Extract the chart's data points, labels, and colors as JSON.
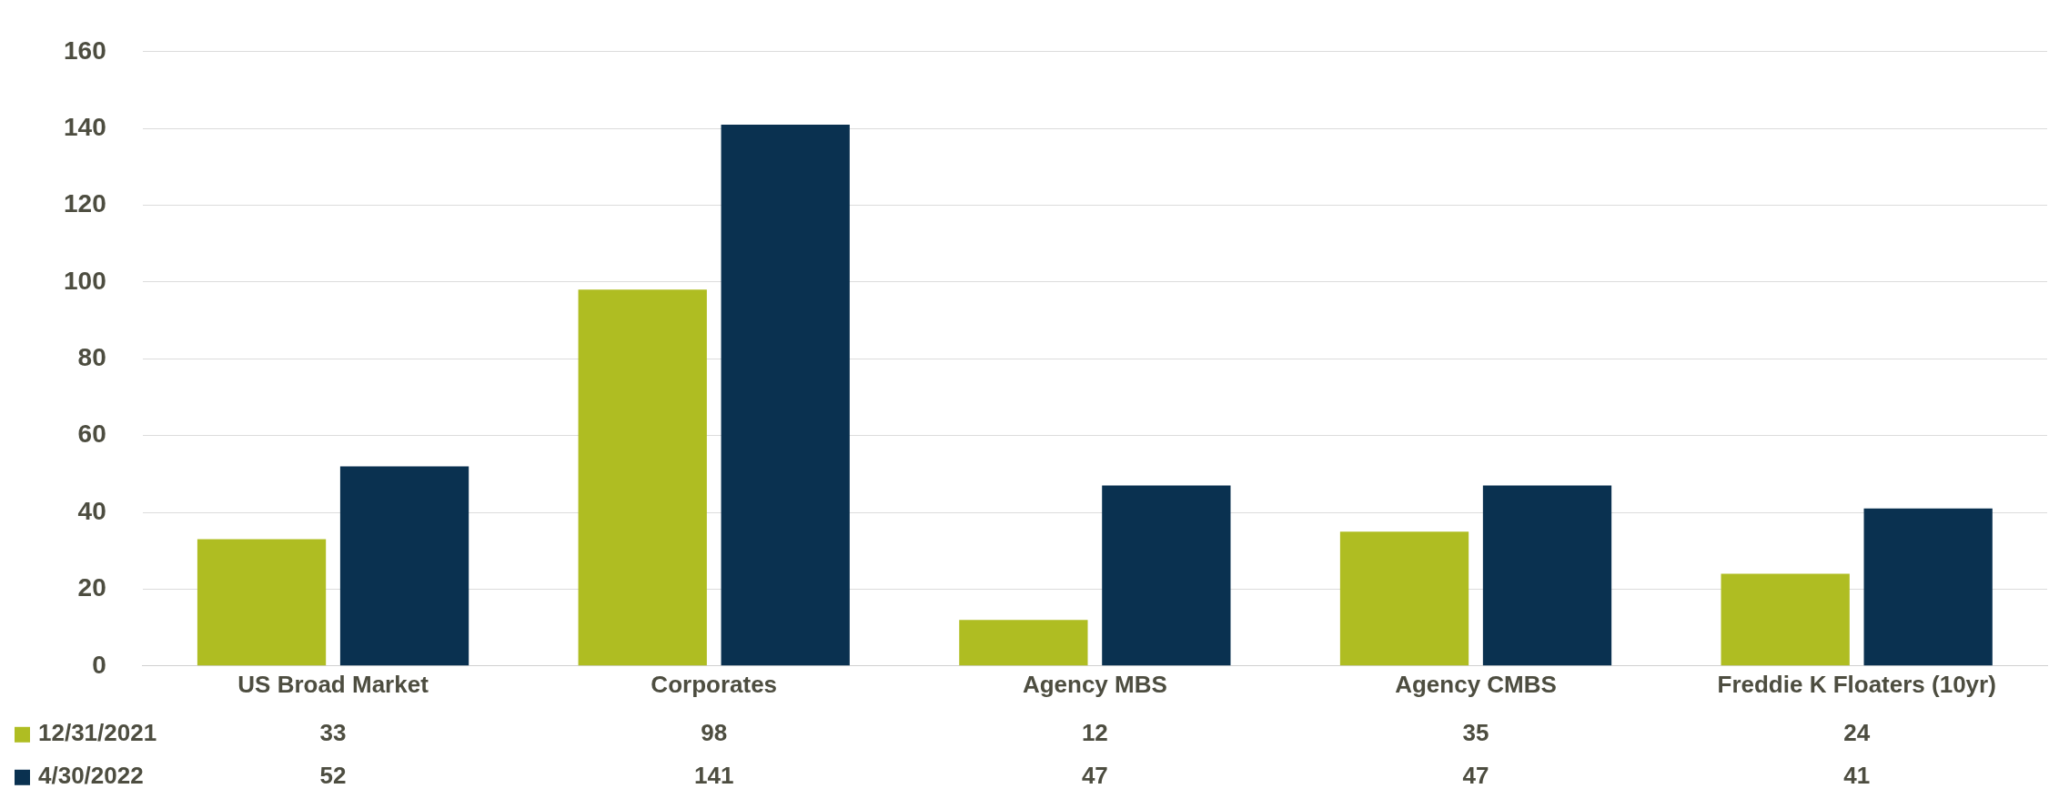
{
  "chart_data": {
    "type": "bar",
    "categories": [
      "US Broad Market",
      "Corporates",
      "Agency MBS",
      "Agency CMBS",
      "Freddie K Floaters (10yr)"
    ],
    "series": [
      {
        "name": "12/31/2021",
        "color": "#afbd22",
        "values": [
          33,
          98,
          12,
          35,
          24
        ]
      },
      {
        "name": "4/30/2022",
        "color": "#0a3150",
        "values": [
          52,
          141,
          47,
          47,
          41
        ]
      }
    ],
    "ylim": [
      0,
      160
    ],
    "yticks": [
      0,
      20,
      40,
      60,
      80,
      100,
      120,
      140,
      160
    ],
    "grid": "y",
    "data_labels": true,
    "legend": "bottom left"
  }
}
